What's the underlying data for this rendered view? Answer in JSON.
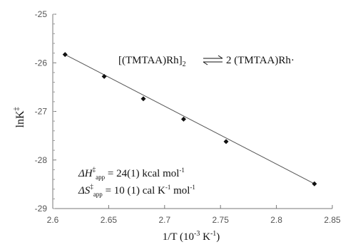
{
  "chart_data": {
    "type": "scatter",
    "title": "",
    "xlabel": "1/T (10",
    "xlabel_exp": "-3",
    "xlabel_unit": " K",
    "xlabel_unit_exp": "-1",
    "xlabel_close": ")",
    "ylabel": "lnK",
    "ylabel_sup": "‡",
    "xlim": [
      2.6,
      2.85
    ],
    "ylim": [
      -29,
      -25
    ],
    "x_ticks": [
      "2.6",
      "2.65",
      "2.7",
      "2.75",
      "2.8",
      "2.85"
    ],
    "y_ticks": [
      "-25",
      "-26",
      "-27",
      "-28",
      "-29"
    ],
    "grid": false,
    "series": [
      {
        "x": [
          2.611,
          2.646,
          2.681,
          2.717,
          2.755,
          2.834
        ],
        "y": [
          -25.83,
          -26.28,
          -26.74,
          -27.16,
          -27.62,
          -28.49
        ],
        "marker": "diamond",
        "color": "#111111"
      }
    ],
    "fit_line": {
      "x": [
        2.611,
        2.834
      ],
      "y": [
        -25.83,
        -28.49
      ],
      "color": "#555555"
    },
    "annotations": {
      "equation_left": "[(TMTAA)Rh]",
      "equation_left_sub": "2",
      "equation_right": "2 (TMTAA)Rh·",
      "dH_symbol": "ΔH",
      "dH_sup": "‡",
      "dH_sub": "app",
      "dH_value": " = 24(1) kcal mol",
      "dH_exp": "-1",
      "dS_symbol": "ΔS",
      "dS_sup": "‡",
      "dS_sub": "app",
      "dS_value": " = 10 (1) cal K",
      "dS_exp": "-1",
      "dS_value2": " mol",
      "dS_exp2": "-1"
    }
  }
}
